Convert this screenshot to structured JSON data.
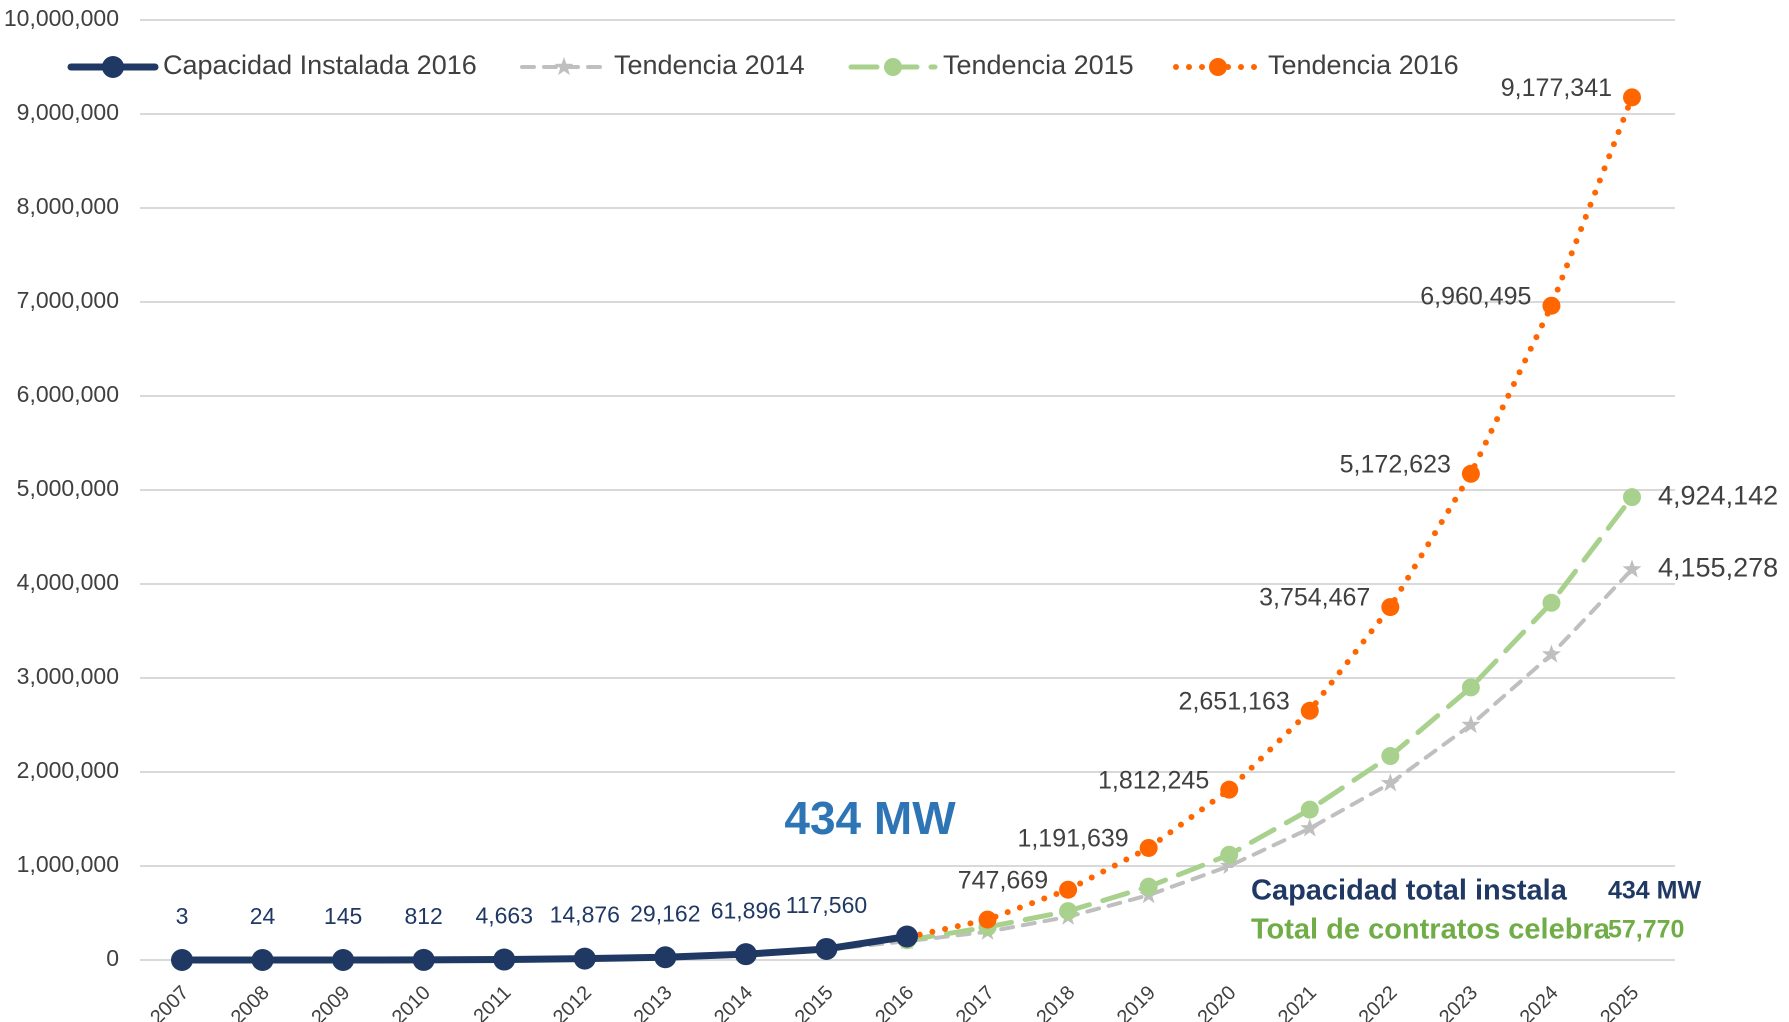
{
  "chart_data": {
    "type": "line",
    "categories": [
      "2007",
      "2008",
      "2009",
      "2010",
      "2011",
      "2012",
      "2013",
      "2014",
      "2015",
      "2016",
      "2017",
      "2018",
      "2019",
      "2020",
      "2021",
      "2022",
      "2023",
      "2024",
      "2025"
    ],
    "series": [
      {
        "name": "Capacidad Instalada 2016",
        "color": "#1f3864",
        "style": "solid",
        "marker": "circle",
        "values": [
          3,
          24,
          145,
          812,
          4663,
          14876,
          29162,
          61896,
          117560,
          250000,
          null,
          null,
          null,
          null,
          null,
          null,
          null,
          null,
          null
        ],
        "value_labels": [
          "3",
          "24",
          "145",
          "812",
          "4,663",
          "14,876",
          "29,162",
          "61,896",
          "117,560",
          null,
          null,
          null,
          null,
          null,
          null,
          null,
          null,
          null,
          null
        ]
      },
      {
        "name": "Tendencia 2014",
        "color": "#bfbfbf",
        "style": "dashed",
        "marker": "star",
        "values": [
          null,
          null,
          null,
          null,
          null,
          null,
          null,
          null,
          110000,
          200000,
          300000,
          460000,
          690000,
          1000000,
          1400000,
          1880000,
          2500000,
          3250000,
          4155278
        ],
        "value_labels": [
          null,
          null,
          null,
          null,
          null,
          null,
          null,
          null,
          null,
          null,
          null,
          null,
          null,
          null,
          null,
          null,
          null,
          null,
          "4,155,278"
        ]
      },
      {
        "name": "Tendencia 2015",
        "color": "#a9d18e",
        "style": "longdash",
        "marker": "circle",
        "values": [
          null,
          null,
          null,
          null,
          null,
          null,
          null,
          null,
          null,
          210000,
          350000,
          520000,
          780000,
          1120000,
          1600000,
          2170000,
          2900000,
          3800000,
          4924142
        ],
        "value_labels": [
          null,
          null,
          null,
          null,
          null,
          null,
          null,
          null,
          null,
          null,
          null,
          null,
          null,
          null,
          null,
          null,
          null,
          null,
          "4,924,142"
        ]
      },
      {
        "name": "Tendencia 2016",
        "color": "#ff6600",
        "style": "dotted",
        "marker": "circle",
        "values": [
          null,
          null,
          null,
          null,
          null,
          null,
          null,
          null,
          null,
          240000,
          430000,
          747669,
          1191639,
          1812245,
          2651163,
          3754467,
          5172623,
          6960495,
          9177341
        ],
        "value_labels": [
          null,
          null,
          null,
          null,
          null,
          null,
          null,
          null,
          null,
          null,
          null,
          "747,669",
          "1,191,639",
          "1,812,245",
          "2,651,163",
          "3,754,467",
          "5,172,623",
          "6,960,495",
          "9,177,341"
        ]
      }
    ],
    "ylim": [
      0,
      10000000
    ],
    "yticks": [
      0,
      {
        "value": 1000000,
        "label": "1,000,000"
      },
      {
        "value": 2000000,
        "label": "2,000,000"
      },
      {
        "value": 3000000,
        "label": "3,000,000"
      },
      {
        "value": 4000000,
        "label": "4,000,000"
      },
      {
        "value": 5000000,
        "label": "5,000,000"
      },
      {
        "value": 6000000,
        "label": "6,000,000"
      },
      {
        "value": 7000000,
        "label": "7,000,000"
      },
      {
        "value": 8000000,
        "label": "8,000,000"
      },
      {
        "value": 9000000,
        "label": "9,000,000"
      },
      {
        "value": 10000000,
        "label": "10,000,000"
      }
    ],
    "grid": true,
    "legend": "top",
    "annotations": {
      "highlight": "434 MW",
      "box": [
        {
          "label": "Capacidad total instala",
          "value": "434 MW",
          "color": "#1f3864"
        },
        {
          "label": "Total de contratos celebra",
          "value": "57,770",
          "color": "#70ad47"
        }
      ]
    }
  }
}
